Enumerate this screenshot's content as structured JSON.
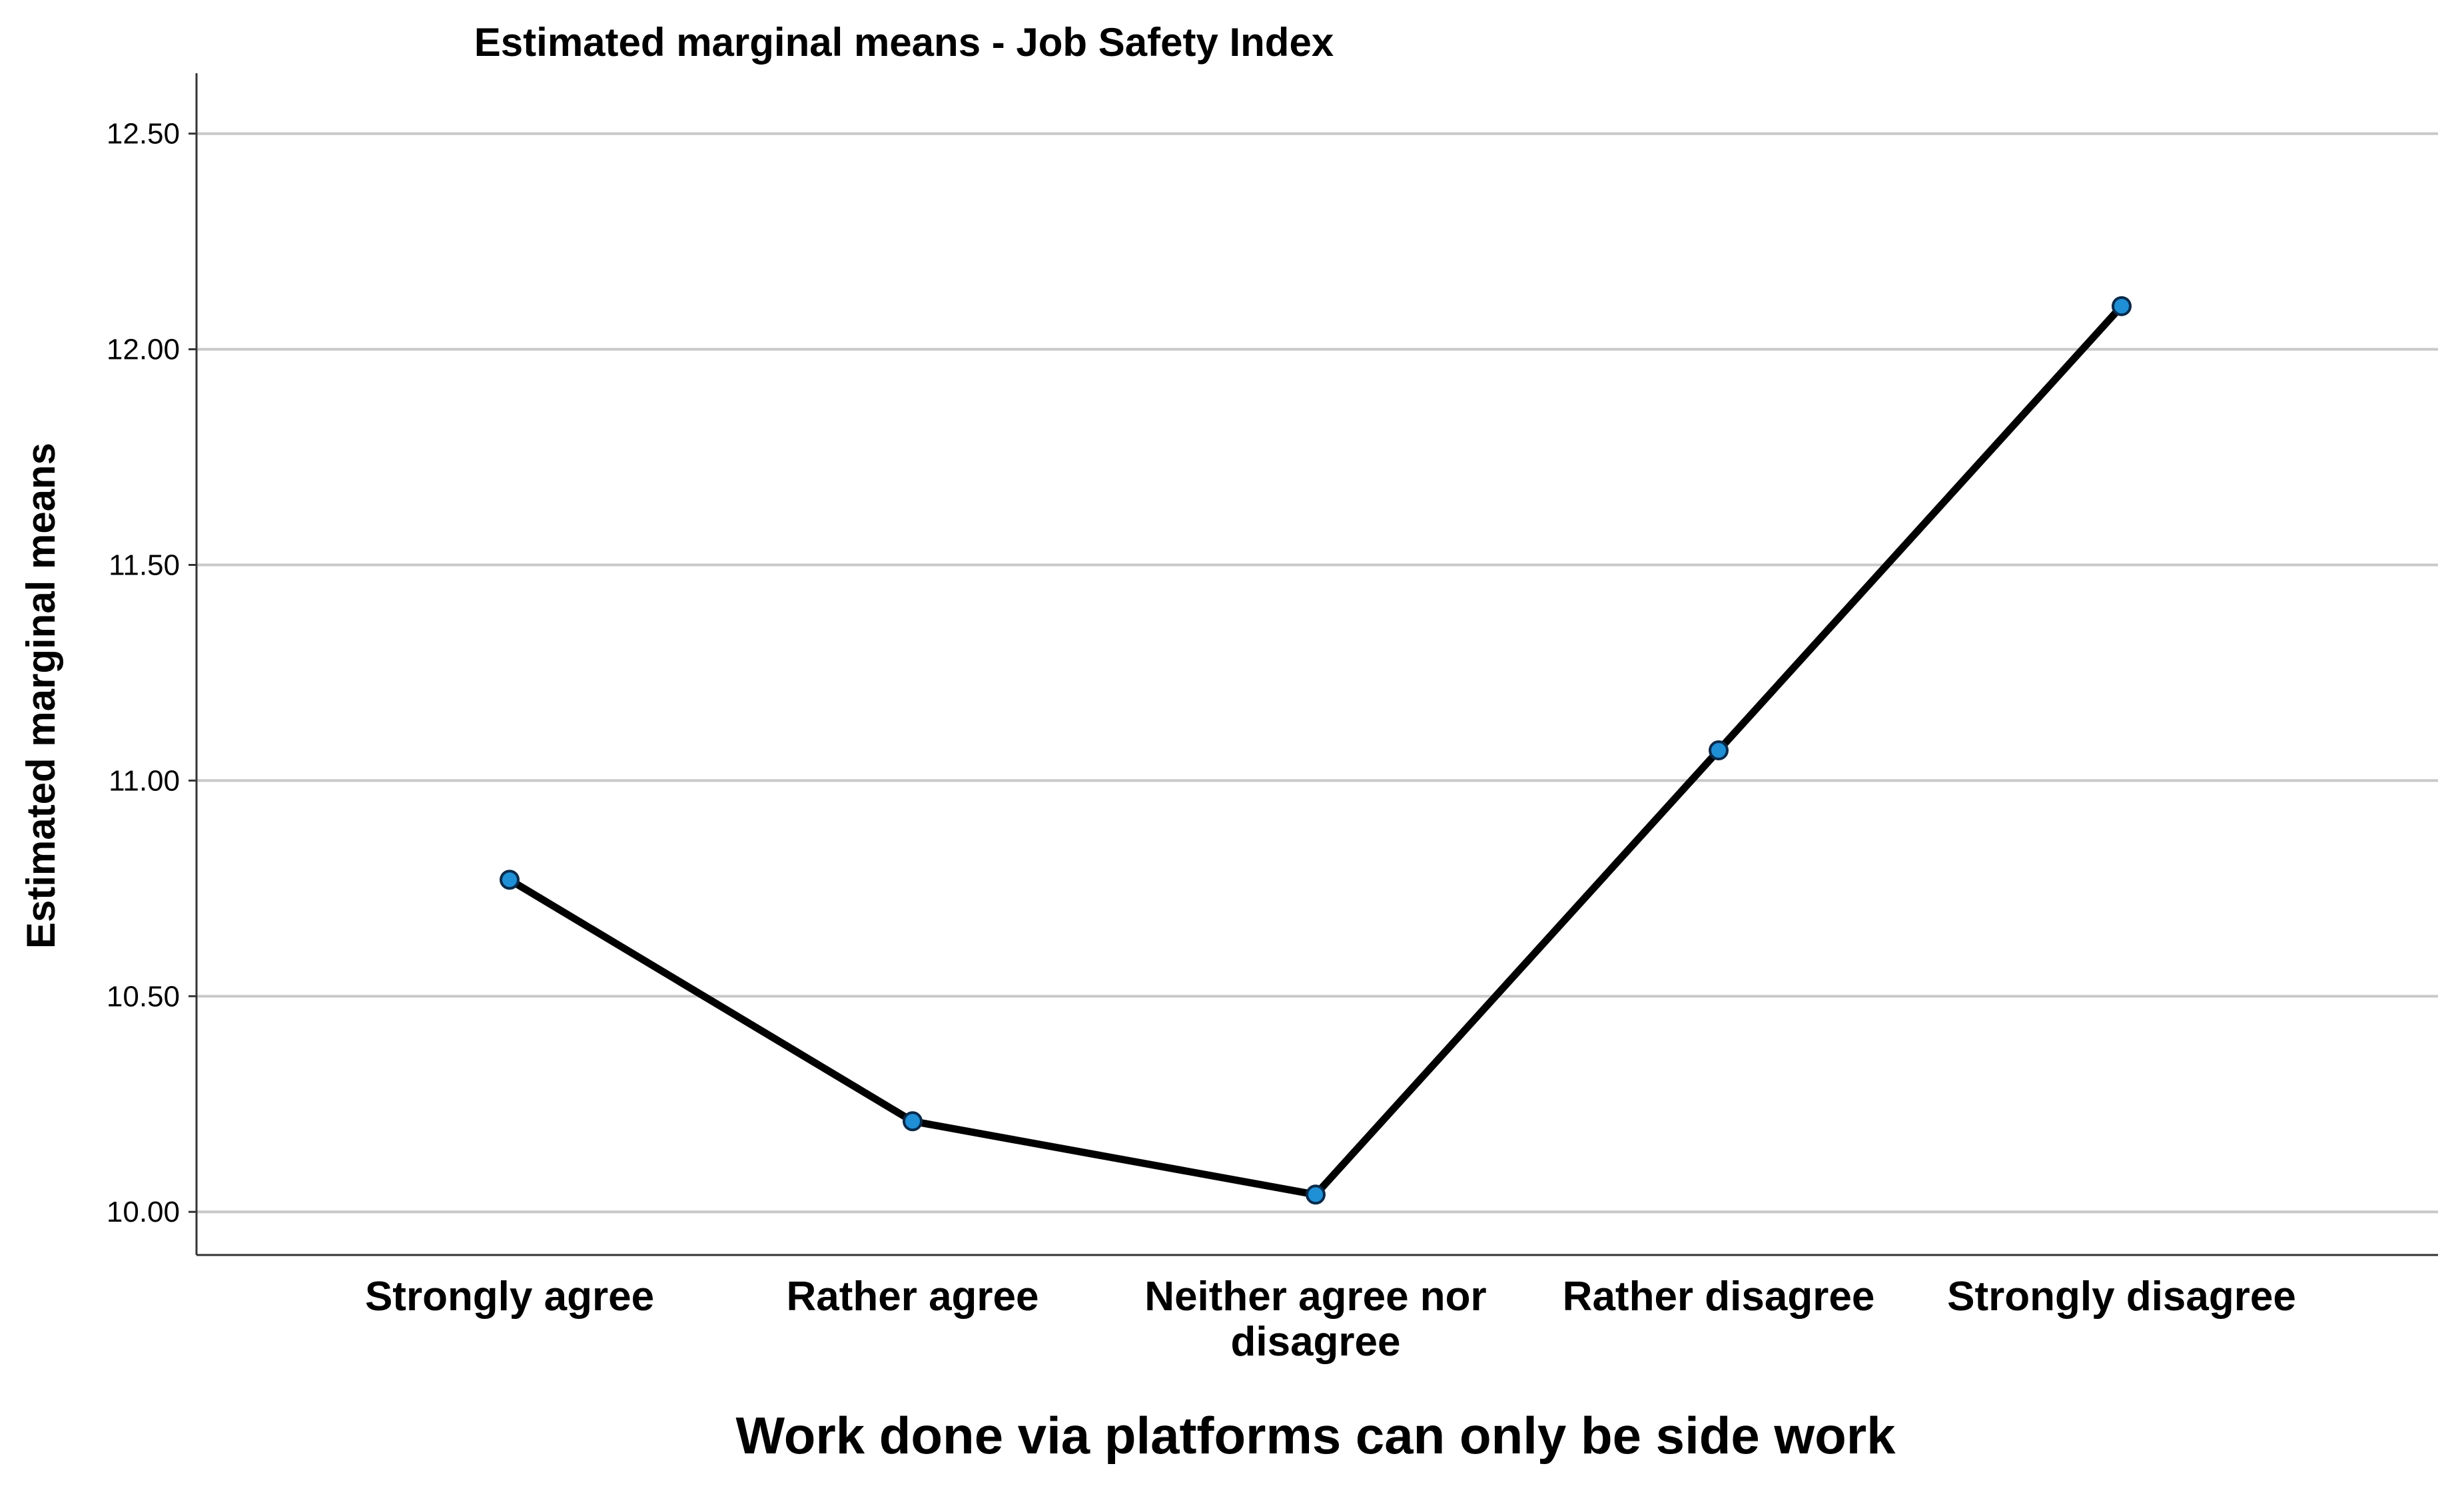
{
  "chart_data": {
    "type": "line",
    "title": "Estimated marginal means - Job Safety Index",
    "xlabel": "Work done via platforms can only be side work",
    "ylabel": "Estimated marginal means",
    "categories": [
      [
        "Strongly agree"
      ],
      [
        "Rather agree"
      ],
      [
        "Neither agree nor",
        "disagree"
      ],
      [
        "Rather disagree"
      ],
      [
        "Strongly disagree"
      ]
    ],
    "series": [
      {
        "values": [
          10.77,
          10.21,
          10.04,
          11.07,
          12.1
        ]
      }
    ],
    "ylim": [
      9.9,
      12.64
    ],
    "yticks": [
      "10.00",
      "10.50",
      "11.00",
      "11.50",
      "12.00",
      "12.50"
    ],
    "grid": "horizontal",
    "colors": {
      "line": "#000000",
      "marker_fill": "#1f8fd6",
      "marker_stroke": "#0a2a4a",
      "grid": "#c8c8c8",
      "axis": "#333333"
    }
  }
}
